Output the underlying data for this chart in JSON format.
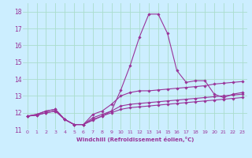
{
  "background_color": "#cceeff",
  "grid_color": "#aaddcc",
  "line_color": "#993399",
  "marker_color": "#993399",
  "xlabel": "Windchill (Refroidissement éolien,°C)",
  "xlabel_color": "#993399",
  "ylim": [
    11,
    18.5
  ],
  "xlim": [
    -0.5,
    23.5
  ],
  "yticks": [
    11,
    12,
    13,
    14,
    15,
    16,
    17,
    18
  ],
  "xticks": [
    0,
    1,
    2,
    3,
    4,
    5,
    6,
    7,
    8,
    9,
    10,
    11,
    12,
    13,
    14,
    15,
    16,
    17,
    18,
    19,
    20,
    21,
    22,
    23
  ],
  "lines": [
    [
      11.8,
      11.9,
      12.1,
      12.2,
      11.6,
      11.3,
      11.3,
      11.55,
      11.8,
      12.1,
      13.35,
      14.8,
      16.5,
      17.85,
      17.85,
      16.7,
      14.5,
      13.8,
      13.9,
      13.9,
      13.1,
      12.9,
      13.1,
      13.2
    ],
    [
      11.8,
      11.9,
      12.1,
      12.2,
      11.6,
      11.3,
      11.3,
      11.9,
      12.1,
      12.5,
      13.0,
      13.2,
      13.3,
      13.3,
      13.35,
      13.4,
      13.45,
      13.5,
      13.55,
      13.6,
      13.7,
      13.75,
      13.8,
      13.85
    ],
    [
      11.8,
      11.85,
      12.0,
      12.1,
      11.6,
      11.3,
      11.3,
      11.7,
      11.9,
      12.1,
      12.4,
      12.5,
      12.55,
      12.6,
      12.65,
      12.7,
      12.75,
      12.8,
      12.85,
      12.9,
      12.95,
      13.0,
      13.05,
      13.1
    ],
    [
      11.8,
      11.85,
      12.0,
      12.1,
      11.6,
      11.3,
      11.3,
      11.6,
      11.8,
      12.0,
      12.2,
      12.3,
      12.35,
      12.4,
      12.45,
      12.5,
      12.55,
      12.6,
      12.65,
      12.7,
      12.75,
      12.8,
      12.85,
      12.9
    ]
  ]
}
